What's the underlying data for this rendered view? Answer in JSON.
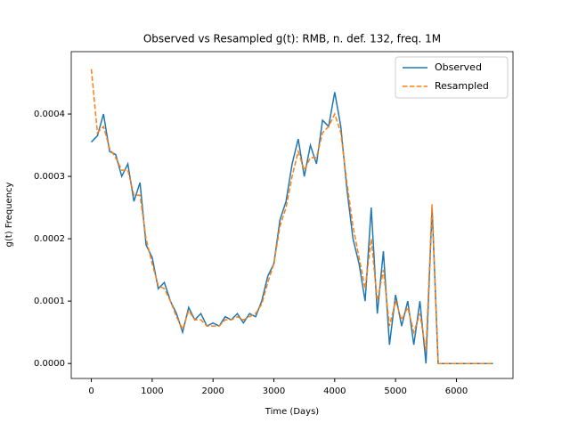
{
  "chart_data": {
    "type": "line",
    "title": "Observed vs Resampled g(t): RMB, n. def. 132, freq. 1M",
    "x_label": "Time (Days)",
    "y_label": "g(t) Frequency",
    "x": [
      0,
      100,
      200,
      300,
      400,
      500,
      600,
      700,
      800,
      900,
      1000,
      1100,
      1200,
      1300,
      1400,
      1500,
      1600,
      1700,
      1800,
      1900,
      2000,
      2100,
      2200,
      2300,
      2400,
      2500,
      2600,
      2700,
      2800,
      2900,
      3000,
      3100,
      3200,
      3300,
      3400,
      3500,
      3600,
      3700,
      3800,
      3900,
      4000,
      4100,
      4200,
      4300,
      4400,
      4500,
      4600,
      4700,
      4800,
      4900,
      5000,
      5100,
      5200,
      5300,
      5400,
      5500,
      5600,
      5700,
      5800,
      5900,
      6000,
      6100,
      6200,
      6300,
      6400,
      6500,
      6600
    ],
    "series": [
      {
        "name": "Observed",
        "color": "#1f77b4",
        "dash": false,
        "values": [
          0.000355,
          0.000365,
          0.0004,
          0.00034,
          0.000335,
          0.0003,
          0.00032,
          0.00026,
          0.00029,
          0.00019,
          0.00017,
          0.00012,
          0.00013,
          0.0001,
          8e-05,
          5e-05,
          9e-05,
          7e-05,
          8e-05,
          6e-05,
          6.5e-05,
          6e-05,
          7.5e-05,
          7e-05,
          8e-05,
          6.5e-05,
          8e-05,
          7.5e-05,
          0.0001,
          0.00014,
          0.00016,
          0.00023,
          0.00026,
          0.00032,
          0.00036,
          0.0003,
          0.00035,
          0.00032,
          0.00039,
          0.00038,
          0.000435,
          0.00038,
          0.00028,
          0.0002,
          0.00016,
          0.0001,
          0.00025,
          8e-05,
          0.00018,
          3e-05,
          0.00011,
          6e-05,
          0.0001,
          3e-05,
          0.0001,
          0,
          0.00025,
          0,
          0,
          0,
          0,
          0,
          0,
          0,
          0,
          0,
          0
        ]
      },
      {
        "name": "Resampled",
        "color": "#ff7f0e",
        "dash": true,
        "values": [
          0.000472,
          0.00037,
          0.00038,
          0.000345,
          0.00033,
          0.00031,
          0.00031,
          0.00027,
          0.00027,
          0.0002,
          0.00016,
          0.000125,
          0.00012,
          0.0001,
          7.5e-05,
          5.5e-05,
          8.5e-05,
          7e-05,
          7e-05,
          6e-05,
          6e-05,
          6e-05,
          7e-05,
          7e-05,
          7.5e-05,
          7e-05,
          7.5e-05,
          8e-05,
          9.5e-05,
          0.00013,
          0.00016,
          0.00022,
          0.00025,
          0.0003,
          0.00034,
          0.00031,
          0.00033,
          0.00033,
          0.00037,
          0.00038,
          0.0004,
          0.00037,
          0.00029,
          0.00022,
          0.00017,
          0.00012,
          0.0002,
          0.0001,
          0.00015,
          6e-05,
          0.0001,
          7e-05,
          9e-05,
          5e-05,
          8e-05,
          2e-05,
          0.000255,
          0,
          0,
          0,
          0,
          0,
          0,
          0,
          0,
          0,
          0
        ]
      }
    ],
    "xlim": [
      -330,
      6930
    ],
    "ylim": [
      -2.4e-05,
      0.0005
    ],
    "xticks": [
      0,
      1000,
      2000,
      3000,
      4000,
      5000,
      6000
    ],
    "yticks": [
      {
        "value": 0,
        "label": "0.0000"
      },
      {
        "value": 0.0001,
        "label": "0.0001"
      },
      {
        "value": 0.0002,
        "label": "0.0002"
      },
      {
        "value": 0.0003,
        "label": "0.0003"
      },
      {
        "value": 0.0004,
        "label": "0.0004"
      }
    ],
    "legend": "upper right"
  }
}
